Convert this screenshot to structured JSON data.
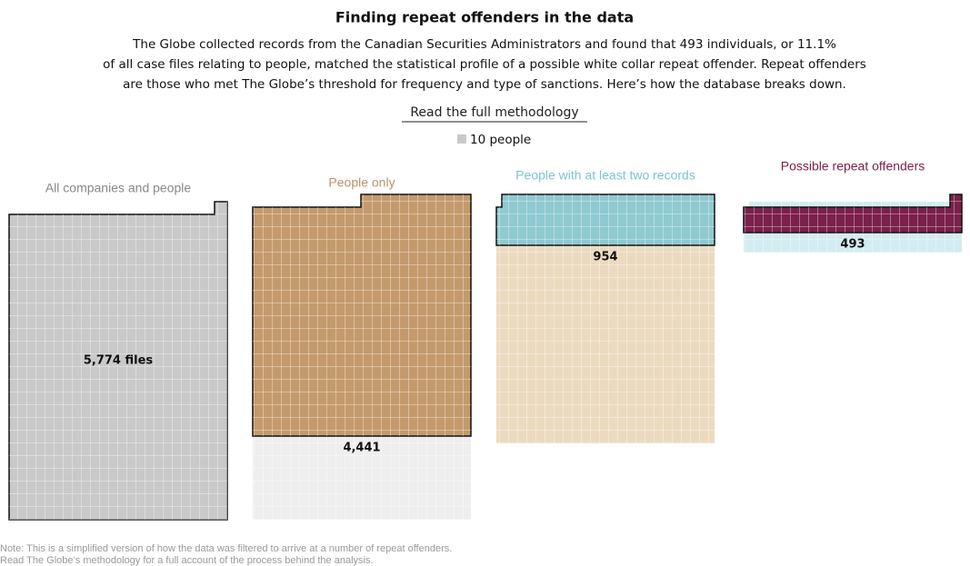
{
  "chart_data": {
    "type": "waffle",
    "title": "Finding repeat offenders in the data",
    "subtitle": [
      "The Globe collected records from the Canadian Securities Administrators and found that 493 individuals, or 11.1%",
      "of all case files relating to people, matched the statistical profile of a possible white collar repeat offender. Repeat offenders",
      "are those who met The Globe’s threshold for frequency and type of sanctions. Here’s how the database breaks down."
    ],
    "link": "Read the full methodology",
    "legend": "10 people",
    "unit": 10,
    "categories": [
      "All companies and people",
      "People only",
      "People with at least two records",
      "Possible repeat offenders"
    ],
    "values": [
      5774,
      4441,
      954,
      493
    ],
    "value_labels": [
      "5,774 files",
      "4,441",
      "954",
      "493"
    ],
    "colors": [
      "#c9c9c9",
      "#c49a6c",
      "#8ecad0",
      "#7b1f4b"
    ],
    "label_colors": [
      "#888888",
      "#b8926a",
      "#7ec4cc",
      "#7b1f4b"
    ],
    "ghost_colors": [
      "#eeeeee",
      "#eeeeee",
      "#ecdabf",
      "#d3ecf0"
    ],
    "note": [
      "Note: This is a simplified version of how the data was filtered to arrive at a number of repeat offenders.",
      "Read The Globe’s methodology for a full account of the process behind the analysis."
    ]
  }
}
